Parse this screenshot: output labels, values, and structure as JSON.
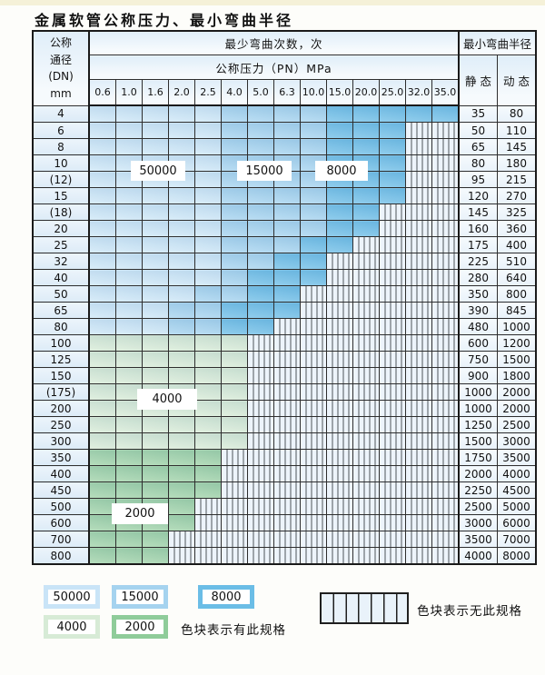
{
  "title": "金属软管公称压力、最小弯曲半径",
  "table": {
    "dn_header": [
      "公称",
      "通径",
      "(DN)",
      "mm"
    ],
    "cycles_header": "最少弯曲次数，次",
    "pressure_header": "公称压力（PN）MPa",
    "pressures": [
      "0.6",
      "1.0",
      "1.6",
      "2.0",
      "2.5",
      "4.0",
      "5.0",
      "6.3",
      "10.0",
      "15.0",
      "20.0",
      "25.0",
      "32.0",
      "35.0"
    ],
    "radius_header": "最小弯曲半径",
    "static_header": "静 态",
    "dynamic_header": "动 态",
    "rows": [
      {
        "dn": "4",
        "bands": [
          [
            "50000",
            5
          ],
          [
            "15000",
            4
          ],
          [
            "8000",
            5
          ]
        ],
        "static": "35",
        "dynamic": "80"
      },
      {
        "dn": "6",
        "bands": [
          [
            "50000",
            5
          ],
          [
            "15000",
            4
          ],
          [
            "8000",
            3
          ]
        ],
        "static": "50",
        "dynamic": "110"
      },
      {
        "dn": "8",
        "bands": [
          [
            "50000",
            5
          ],
          [
            "15000",
            4
          ],
          [
            "8000",
            3
          ]
        ],
        "static": "65",
        "dynamic": "145"
      },
      {
        "dn": "10",
        "bands": [
          [
            "50000",
            5
          ],
          [
            "15000",
            4
          ],
          [
            "8000",
            3
          ]
        ],
        "static": "80",
        "dynamic": "180"
      },
      {
        "dn": "(12)",
        "bands": [
          [
            "50000",
            5
          ],
          [
            "15000",
            4
          ],
          [
            "8000",
            3
          ]
        ],
        "static": "95",
        "dynamic": "215"
      },
      {
        "dn": "15",
        "bands": [
          [
            "50000",
            5
          ],
          [
            "15000",
            4
          ],
          [
            "8000",
            3
          ]
        ],
        "static": "120",
        "dynamic": "270"
      },
      {
        "dn": "(18)",
        "bands": [
          [
            "50000",
            5
          ],
          [
            "15000",
            4
          ],
          [
            "8000",
            2
          ]
        ],
        "static": "145",
        "dynamic": "325"
      },
      {
        "dn": "20",
        "bands": [
          [
            "50000",
            5
          ],
          [
            "15000",
            4
          ],
          [
            "8000",
            2
          ]
        ],
        "static": "160",
        "dynamic": "360"
      },
      {
        "dn": "25",
        "bands": [
          [
            "50000",
            5
          ],
          [
            "15000",
            3
          ],
          [
            "8000",
            2
          ]
        ],
        "static": "175",
        "dynamic": "400"
      },
      {
        "dn": "32",
        "bands": [
          [
            "50000",
            5
          ],
          [
            "15000",
            2
          ],
          [
            "8000",
            2
          ]
        ],
        "static": "225",
        "dynamic": "510"
      },
      {
        "dn": "40",
        "bands": [
          [
            "50000",
            5
          ],
          [
            "15000",
            1
          ],
          [
            "8000",
            3
          ]
        ],
        "static": "280",
        "dynamic": "640"
      },
      {
        "dn": "50",
        "bands": [
          [
            "50000",
            4
          ],
          [
            "15000",
            2
          ],
          [
            "8000",
            2
          ]
        ],
        "static": "350",
        "dynamic": "800"
      },
      {
        "dn": "65",
        "bands": [
          [
            "50000",
            3
          ],
          [
            "15000",
            2
          ],
          [
            "8000",
            3
          ]
        ],
        "static": "390",
        "dynamic": "845"
      },
      {
        "dn": "80",
        "bands": [
          [
            "50000",
            3
          ],
          [
            "15000",
            2
          ],
          [
            "8000",
            2
          ]
        ],
        "static": "480",
        "dynamic": "1000"
      },
      {
        "dn": "100",
        "bands": [
          [
            "4000",
            6
          ]
        ],
        "static": "600",
        "dynamic": "1200"
      },
      {
        "dn": "125",
        "bands": [
          [
            "4000",
            6
          ]
        ],
        "static": "750",
        "dynamic": "1500"
      },
      {
        "dn": "150",
        "bands": [
          [
            "4000",
            6
          ]
        ],
        "static": "900",
        "dynamic": "1800"
      },
      {
        "dn": "(175)",
        "bands": [
          [
            "4000",
            6
          ]
        ],
        "static": "1000",
        "dynamic": "2000"
      },
      {
        "dn": "200",
        "bands": [
          [
            "4000",
            6
          ]
        ],
        "static": "1000",
        "dynamic": "2000"
      },
      {
        "dn": "250",
        "bands": [
          [
            "4000",
            6
          ]
        ],
        "static": "1250",
        "dynamic": "2500"
      },
      {
        "dn": "300",
        "bands": [
          [
            "4000",
            6
          ]
        ],
        "static": "1500",
        "dynamic": "3000"
      },
      {
        "dn": "350",
        "bands": [
          [
            "2000",
            5
          ]
        ],
        "static": "1750",
        "dynamic": "3500"
      },
      {
        "dn": "400",
        "bands": [
          [
            "2000",
            5
          ]
        ],
        "static": "2000",
        "dynamic": "4000"
      },
      {
        "dn": "450",
        "bands": [
          [
            "2000",
            5
          ]
        ],
        "static": "2250",
        "dynamic": "4500"
      },
      {
        "dn": "500",
        "bands": [
          [
            "2000",
            4
          ]
        ],
        "static": "2500",
        "dynamic": "5000"
      },
      {
        "dn": "600",
        "bands": [
          [
            "2000",
            4
          ]
        ],
        "static": "3000",
        "dynamic": "6000"
      },
      {
        "dn": "700",
        "bands": [
          [
            "2000",
            3
          ]
        ],
        "static": "3500",
        "dynamic": "7000"
      },
      {
        "dn": "800",
        "bands": [
          [
            "2000",
            3
          ]
        ],
        "static": "4000",
        "dynamic": "8000"
      }
    ]
  },
  "region_labels": {
    "b50000": "50000",
    "b15000": "15000",
    "b8000": "8000",
    "g4000": "4000",
    "g2000": "2000"
  },
  "legend": {
    "items": [
      {
        "value": "50000",
        "color": "#c9e4f7"
      },
      {
        "value": "15000",
        "color": "#a5d3ef"
      },
      {
        "value": "8000",
        "color": "#6bbde6"
      },
      {
        "value": "4000",
        "color": "#d7ebd6"
      },
      {
        "value": "2000",
        "color": "#8fcc9a"
      }
    ],
    "has_spec_text": "色块表示有此规格",
    "no_spec_text": "色块表示无此规格"
  },
  "colors": {
    "band_50000": "#cfe8f8",
    "band_15000": "#a8d5f0",
    "band_8000": "#72c0e8",
    "band_4000": "#d9ecd7",
    "band_2000": "#a2d4a9",
    "no_spec_bg": "#edf4fb",
    "grid_line": "#2e2e2e"
  }
}
